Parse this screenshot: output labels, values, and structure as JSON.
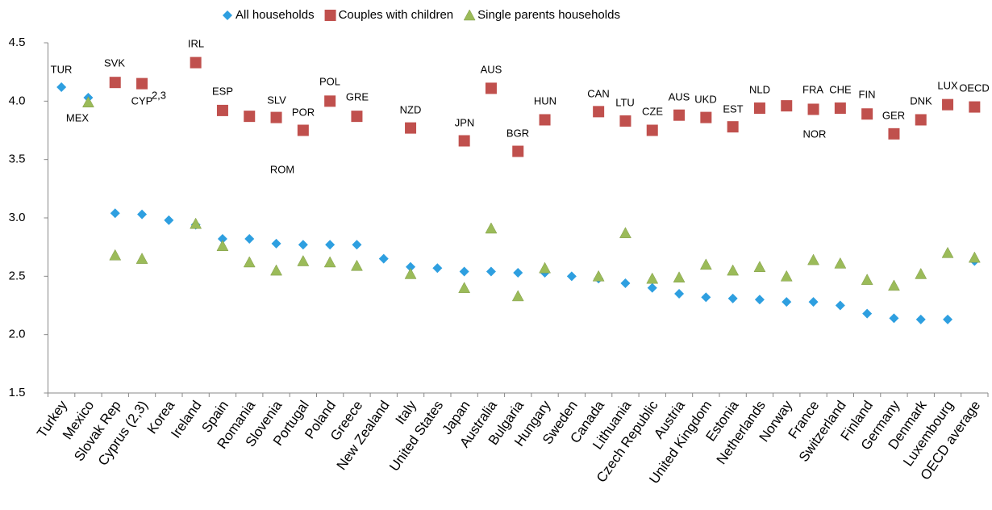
{
  "chart_data": {
    "type": "scatter",
    "categories": [
      "Turkey",
      "Mexico",
      "Slovak Rep",
      "Cyprus (2,3)",
      "Korea",
      "Ireland",
      "Spain",
      "Romania",
      "Slovenia",
      "Portugal",
      "Poland",
      "Greece",
      "New Zealand",
      "Italy",
      "United States",
      "Japan",
      "Australia",
      "Bulgaria",
      "Hungary",
      "Sweden",
      "Canada",
      "Lithuania",
      "Czech Republic",
      "Austria",
      "United Kingdom",
      "Estonia",
      "Netherlands",
      "Norway",
      "France",
      "Switzerland",
      "Finland",
      "Germany",
      "Denmark",
      "Luxembourg",
      "OECD average"
    ],
    "series": [
      {
        "name": "All households",
        "color": "#2e9fe0",
        "marker": "diamond",
        "values": [
          4.12,
          4.03,
          3.04,
          3.03,
          2.98,
          2.94,
          2.82,
          2.82,
          2.78,
          2.77,
          2.77,
          2.77,
          2.65,
          2.58,
          2.57,
          2.54,
          2.54,
          2.53,
          2.53,
          2.5,
          2.48,
          2.44,
          2.4,
          2.35,
          2.32,
          2.31,
          2.3,
          2.28,
          2.28,
          2.25,
          2.18,
          2.14,
          2.13,
          2.13,
          2.63
        ]
      },
      {
        "name": "Couples with children",
        "color": "#c0504d",
        "marker": "square",
        "values": [
          null,
          null,
          4.16,
          4.15,
          null,
          4.33,
          3.92,
          3.87,
          3.86,
          3.75,
          4.0,
          3.87,
          null,
          3.77,
          null,
          3.66,
          4.11,
          3.57,
          3.84,
          null,
          3.91,
          3.83,
          3.75,
          3.88,
          3.86,
          3.78,
          3.94,
          3.96,
          3.93,
          3.94,
          3.89,
          3.72,
          3.84,
          3.97,
          3.95
        ]
      },
      {
        "name": "Single parents households",
        "color": "#9bbb59",
        "marker": "triangle",
        "values": [
          null,
          3.99,
          2.68,
          2.65,
          null,
          2.95,
          2.76,
          2.62,
          2.55,
          2.63,
          2.62,
          2.59,
          null,
          2.52,
          null,
          2.4,
          2.91,
          2.33,
          2.57,
          null,
          2.5,
          2.87,
          2.48,
          2.49,
          2.6,
          2.55,
          2.58,
          2.5,
          2.64,
          2.61,
          2.47,
          2.42,
          2.52,
          2.7,
          2.66
        ]
      }
    ],
    "annotations": [
      "TUR",
      "MEX",
      "SVK",
      "CYP",
      "2,3",
      "IRL",
      "ESP",
      "SLV",
      "POR",
      "ROM",
      "POL",
      "GRE",
      "NZD",
      "JPN",
      "AUS",
      "BGR",
      "HUN",
      "CAN",
      "LTU",
      "CZE",
      "AUS",
      "UKD",
      "EST",
      "NLD",
      "FRA",
      "NOR",
      "CHE",
      "FIN",
      "GER",
      "DNK",
      "LUX",
      "OECD"
    ],
    "ylim": [
      1.5,
      4.5
    ],
    "yticks": [
      1.5,
      {
        "value": 2,
        "label": "2.0"
      },
      2.5,
      {
        "value": 3,
        "label": "3.0"
      },
      3.5,
      {
        "value": 4,
        "label": "4.0"
      },
      4.5
    ],
    "grid": false,
    "legend": "top"
  }
}
